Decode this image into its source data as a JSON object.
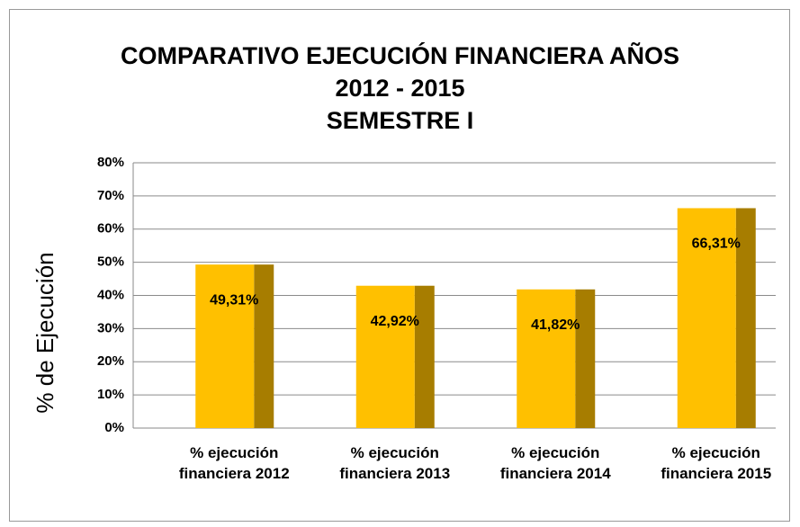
{
  "chart_data": {
    "type": "bar",
    "title": "COMPARATIVO EJECUCIÓN FINANCIERA AÑOS\n2012 - 2015\nSEMESTRE I",
    "y_axis_label": "% de Ejecución",
    "categories": [
      "% ejecución financiera 2012",
      "% ejecución financiera 2013",
      "% ejecución financiera 2014",
      "% ejecución financiera 2015"
    ],
    "values": [
      49.31,
      42.92,
      41.82,
      66.31
    ],
    "value_labels": [
      "49,31%",
      "42,92%",
      "41,82%",
      "66,31%"
    ],
    "color": "#ffc000",
    "ylim": [
      0,
      80
    ],
    "yticks": [
      {
        "value": 0,
        "label": "0%"
      },
      {
        "value": 10,
        "label": "10%"
      },
      {
        "value": 20,
        "label": "20%"
      },
      {
        "value": 30,
        "label": "30%"
      },
      {
        "value": 40,
        "label": "40%"
      },
      {
        "value": 50,
        "label": "50%"
      },
      {
        "value": 60,
        "label": "60%"
      },
      {
        "value": 70,
        "label": "70%"
      },
      {
        "value": 80,
        "label": "80%"
      }
    ],
    "grid": true
  }
}
